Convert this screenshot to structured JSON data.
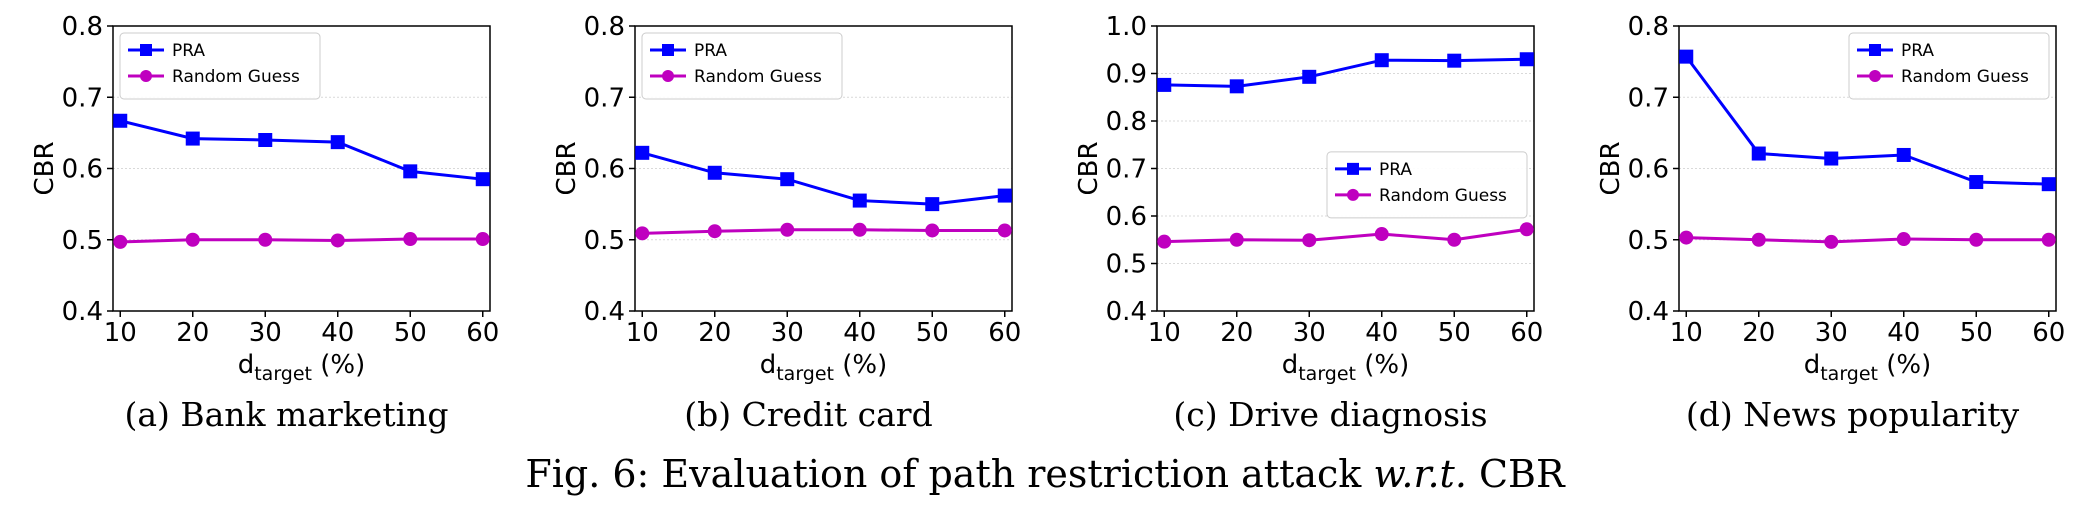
{
  "figure_caption": {
    "prefix": "Fig. 6: Evaluation of path restriction attack ",
    "emph": "w.r.t.",
    "suffix": " CBR"
  },
  "colors": {
    "pra": "#0000ff",
    "random_guess": "#bf00bf"
  },
  "chart_data": [
    {
      "type": "line",
      "caption": "(a) Bank marketing",
      "xlabel": "d",
      "xlabel_sub": "target",
      "xlabel_unit": " (%)",
      "ylabel": "CBR",
      "x": [
        10,
        20,
        30,
        40,
        50,
        60
      ],
      "ylim": [
        0.4,
        0.8
      ],
      "yticks": [
        "0.4",
        "0.5",
        "0.6",
        "0.7",
        "0.8"
      ],
      "legend": "top-left",
      "grid": true,
      "series": [
        {
          "name": "PRA",
          "marker": "square",
          "values": [
            0.667,
            0.642,
            0.64,
            0.637,
            0.596,
            0.585
          ]
        },
        {
          "name": "Random Guess",
          "marker": "circle",
          "values": [
            0.497,
            0.5,
            0.5,
            0.499,
            0.501,
            0.501
          ]
        }
      ]
    },
    {
      "type": "line",
      "caption": "(b) Credit card",
      "xlabel": "d",
      "xlabel_sub": "target",
      "xlabel_unit": " (%)",
      "ylabel": "CBR",
      "x": [
        10,
        20,
        30,
        40,
        50,
        60
      ],
      "ylim": [
        0.4,
        0.8
      ],
      "yticks": [
        "0.4",
        "0.5",
        "0.6",
        "0.7",
        "0.8"
      ],
      "legend": "top-left",
      "grid": true,
      "series": [
        {
          "name": "PRA",
          "marker": "square",
          "values": [
            0.622,
            0.594,
            0.585,
            0.555,
            0.55,
            0.562
          ]
        },
        {
          "name": "Random Guess",
          "marker": "circle",
          "values": [
            0.509,
            0.512,
            0.514,
            0.514,
            0.513,
            0.513
          ]
        }
      ]
    },
    {
      "type": "line",
      "caption": "(c) Drive diagnosis",
      "xlabel": "d",
      "xlabel_sub": "target",
      "xlabel_unit": " (%)",
      "ylabel": "CBR",
      "x": [
        10,
        20,
        30,
        40,
        50,
        60
      ],
      "ylim": [
        0.4,
        1.0
      ],
      "yticks": [
        "0.4",
        "0.5",
        "0.6",
        "0.7",
        "0.8",
        "0.9",
        "1.0"
      ],
      "legend": "center-right",
      "grid": true,
      "series": [
        {
          "name": "PRA",
          "marker": "square",
          "values": [
            0.876,
            0.873,
            0.893,
            0.928,
            0.927,
            0.93
          ]
        },
        {
          "name": "Random Guess",
          "marker": "circle",
          "values": [
            0.546,
            0.55,
            0.549,
            0.562,
            0.55,
            0.572
          ]
        }
      ]
    },
    {
      "type": "line",
      "caption": "(d) News popularity",
      "xlabel": "d",
      "xlabel_sub": "target",
      "xlabel_unit": " (%)",
      "ylabel": "CBR",
      "x": [
        10,
        20,
        30,
        40,
        50,
        60
      ],
      "ylim": [
        0.4,
        0.8
      ],
      "yticks": [
        "0.4",
        "0.5",
        "0.6",
        "0.7",
        "0.8"
      ],
      "legend": "top-right",
      "grid": true,
      "series": [
        {
          "name": "PRA",
          "marker": "square",
          "values": [
            0.757,
            0.621,
            0.614,
            0.619,
            0.581,
            0.578
          ]
        },
        {
          "name": "Random Guess",
          "marker": "circle",
          "values": [
            0.503,
            0.5,
            0.497,
            0.501,
            0.5,
            0.5
          ]
        }
      ]
    }
  ]
}
